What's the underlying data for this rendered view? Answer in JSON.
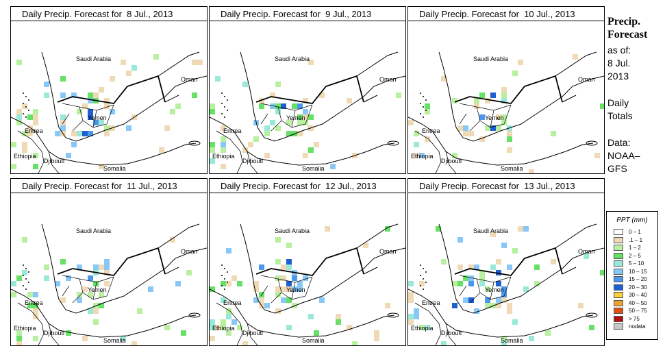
{
  "panels": [
    {
      "title": "Daily Precip. Forecast for  8 Jul., 2013"
    },
    {
      "title": "Daily Precip. Forecast for  9 Jul., 2013"
    },
    {
      "title": "Daily Precip. Forecast for  10 Jul., 2013"
    },
    {
      "title": "Daily Precip. Forecast for  11 Jul., 2013"
    },
    {
      "title": "Daily Precip. Forecast for  12 Jul., 2013"
    },
    {
      "title": "Daily Precip. Forecast for  13 Jul., 2013"
    }
  ],
  "map_labels": {
    "saudi_arabia": "Saudi Arabia",
    "oman": "Oman",
    "yemen": "Yemen",
    "eritrea": "Eritrea",
    "ethiopia": "Ethiopia",
    "djibouti": "Djibouti",
    "somalia": "Somalia"
  },
  "sidebar": {
    "title_line1": "Precip.",
    "title_line2": "Forecast",
    "asof_line1": "as of:",
    "asof_line2": "8 Jul.",
    "asof_line3": "2013",
    "daily_line1": "Daily",
    "daily_line2": "Totals",
    "data_line1": "Data:",
    "data_line2": "NOAA–",
    "data_line3": "GFS"
  },
  "legend": {
    "title": "PPT (mm)",
    "items": [
      {
        "label": "0 – 1",
        "color": "#ffffff"
      },
      {
        "label": ".1 – 1",
        "color": "#f0d9b5"
      },
      {
        "label": "1 – 2",
        "color": "#b8f0a0"
      },
      {
        "label": "2 – 5",
        "color": "#66e066"
      },
      {
        "label": "5 – 10",
        "color": "#9ae8d8"
      },
      {
        "label": "10 – 15",
        "color": "#88c8f8"
      },
      {
        "label": "15 – 20",
        "color": "#4c96ec"
      },
      {
        "label": "20 – 30",
        "color": "#1f5fd0"
      },
      {
        "label": "30 – 40",
        "color": "#f8d040"
      },
      {
        "label": "40 – 50",
        "color": "#f0a030"
      },
      {
        "label": "50 – 75",
        "color": "#e05010"
      },
      {
        "label": "> 75",
        "color": "#b01010"
      },
      {
        "label": "nodata",
        "color": "#c8c8c8"
      }
    ]
  }
}
